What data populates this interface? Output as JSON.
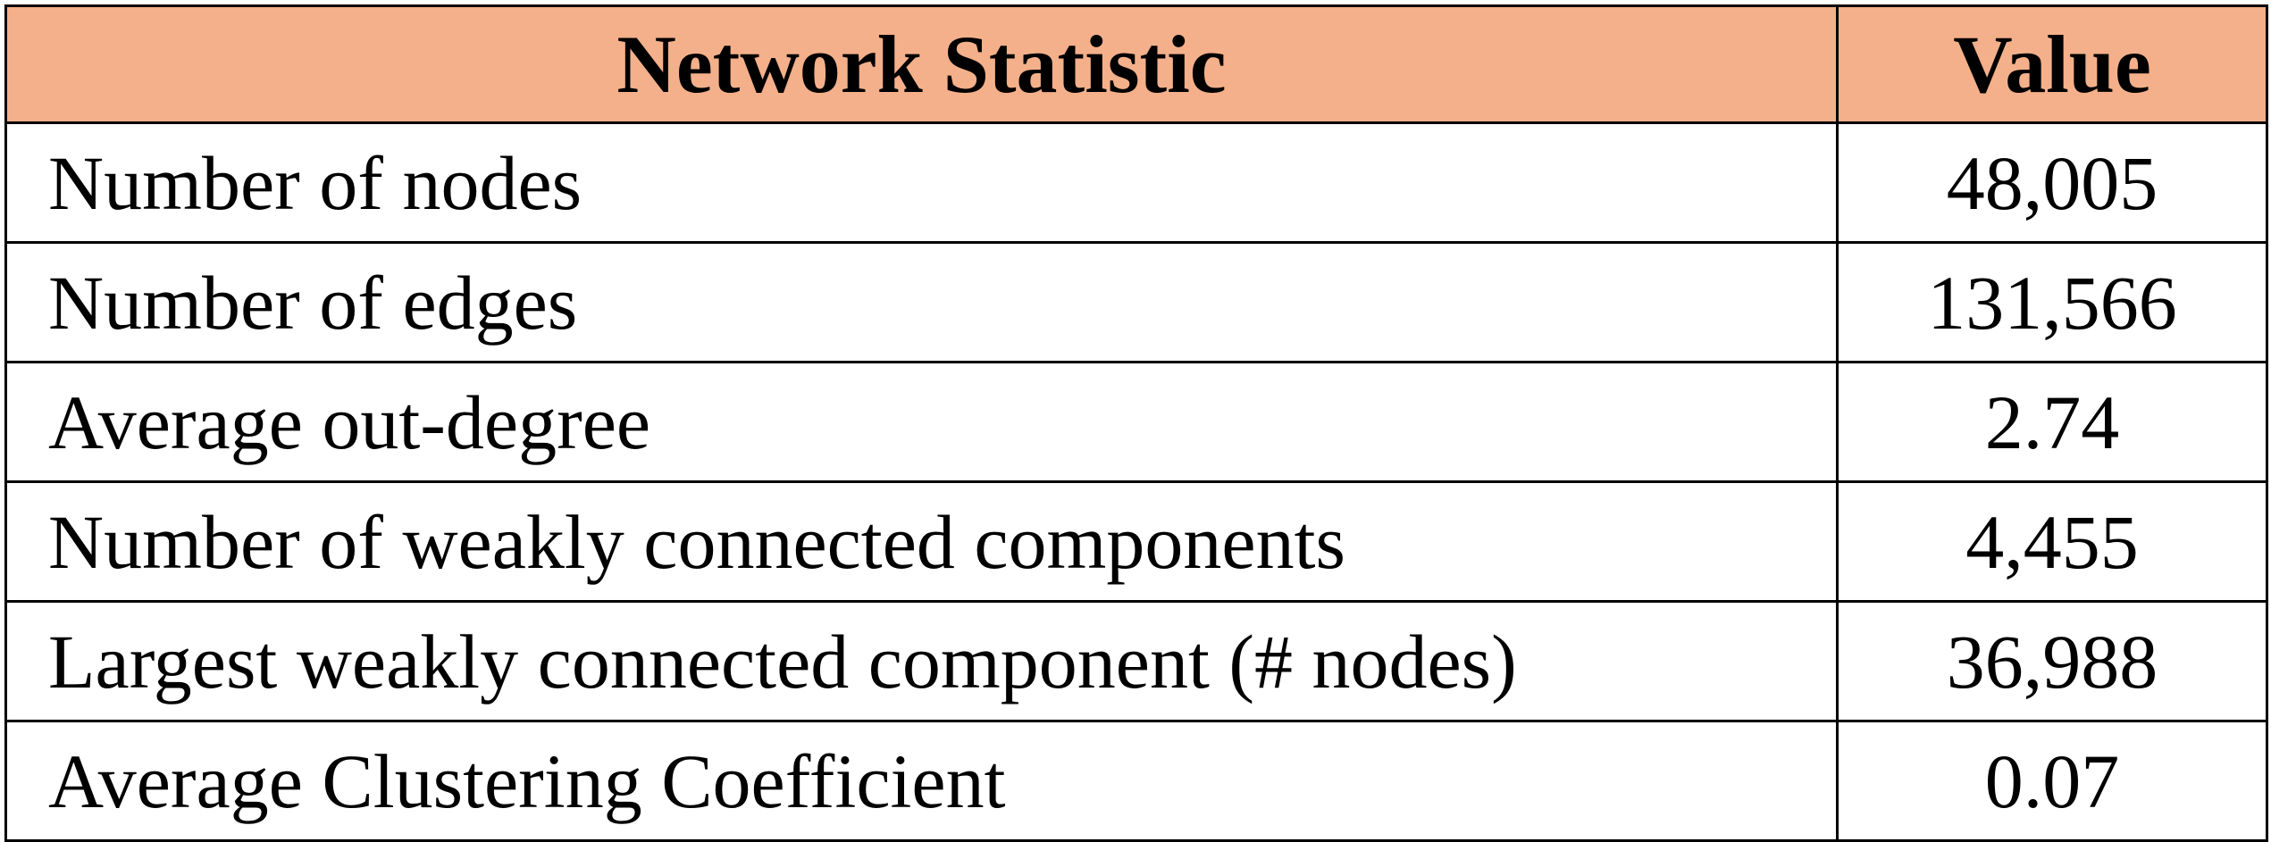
{
  "table": {
    "headers": {
      "statistic": "Network Statistic",
      "value": "Value"
    },
    "rows": [
      {
        "label": "Number of nodes",
        "value": "48,005"
      },
      {
        "label": "Number of edges",
        "value": "131,566"
      },
      {
        "label": "Average out-degree",
        "value": "2.74"
      },
      {
        "label": "Number of weakly connected components",
        "value": "4,455"
      },
      {
        "label": "Largest weakly connected component (# nodes)",
        "value": "36,988"
      },
      {
        "label": "Average Clustering Coefficient",
        "value": "0.07"
      }
    ],
    "colors": {
      "header_background": "#f4b08a",
      "border": "#000000",
      "text": "#000000"
    }
  }
}
